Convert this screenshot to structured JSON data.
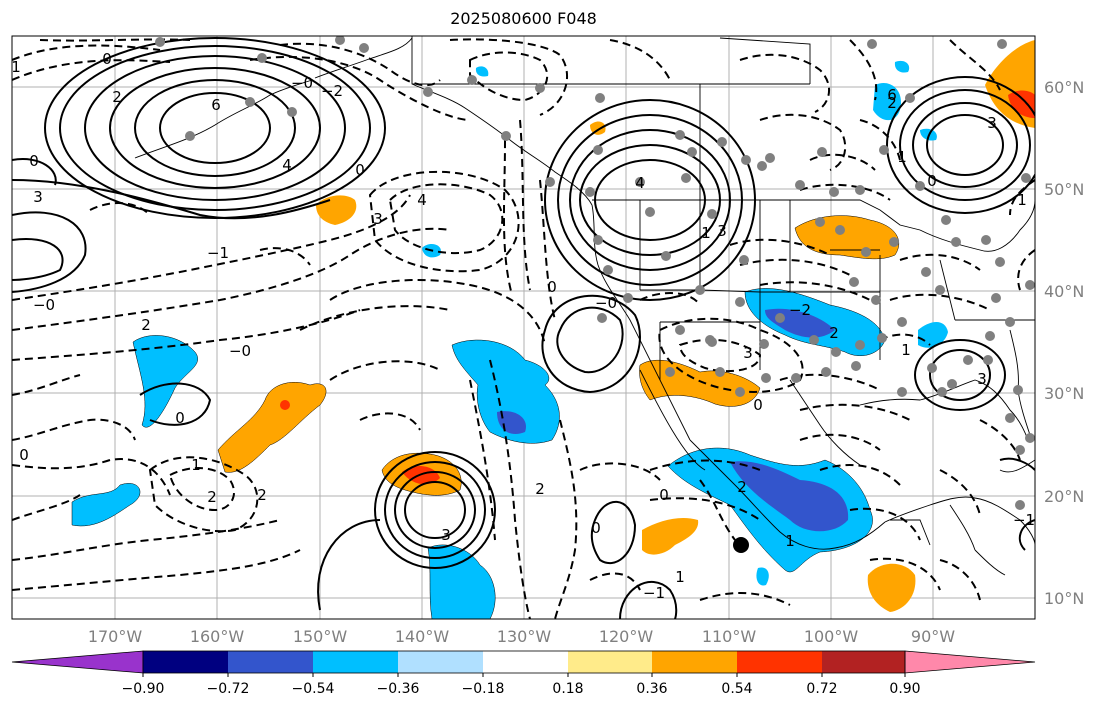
{
  "title": "2025080600 F048",
  "longitude_labels": [
    "170°W",
    "160°W",
    "150°W",
    "140°W",
    "130°W",
    "120°W",
    "110°W",
    "100°W",
    "90°W"
  ],
  "latitude_labels": [
    "60°N",
    "50°N",
    "40°N",
    "30°N",
    "20°N",
    "10°N"
  ],
  "colorbar": {
    "colors": [
      "#9933cc",
      "#000080",
      "#3355cc",
      "#00bfff",
      "#b0e0ff",
      "#ffffff",
      "#ffeb8a",
      "#ffa500",
      "#ff3300",
      "#b22222",
      "#ff88aa"
    ],
    "tick_labels": [
      "−0.90",
      "−0.72",
      "−0.54",
      "−0.36",
      "−0.18",
      "0.18",
      "0.36",
      "0.54",
      "0.72",
      "0.90"
    ]
  },
  "contour_labels": [
    "1",
    "0",
    "0",
    "3",
    "6",
    "2",
    "4",
    "0",
    "3",
    "4",
    "−1",
    "−0",
    "2",
    "−0",
    "0",
    "0",
    "1",
    "2",
    "2",
    "4",
    "3",
    "1",
    "0",
    "3",
    "−2",
    "2",
    "1",
    "3",
    "0",
    "2",
    "0",
    "2",
    "1",
    "3",
    "0",
    "1",
    "−1",
    "−0",
    "−0",
    "−2",
    "1",
    "2",
    "6",
    "3",
    "0",
    "1",
    "−1"
  ]
}
